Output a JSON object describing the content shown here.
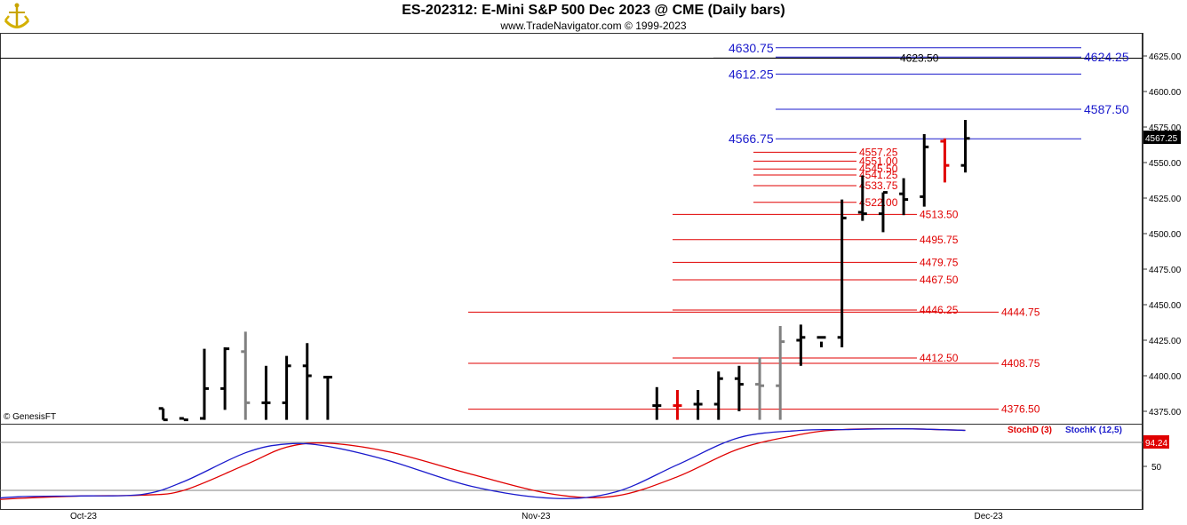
{
  "header": {
    "title": "ES-202312:  E-Mini S&P 500 Dec 2023 @ CME  (Daily bars)",
    "subtitle": "www.TradeNavigator.com © 1999-2023"
  },
  "watermark": "© GenesisFT",
  "colors": {
    "up": "#000000",
    "neutral": "#808080",
    "accent": "#e00000",
    "blue": "#1a1acc",
    "red": "#e00000"
  },
  "chart_data": [
    {
      "type": "ohlc",
      "price_axis": {
        "ylim": [
          4365,
          4640
        ],
        "ticks": [
          "4625.00",
          "4600.00",
          "4575.00",
          "4550.00",
          "4525.00",
          "4500.00",
          "4475.00",
          "4450.00",
          "4425.00",
          "4400.00",
          "4375.00"
        ]
      },
      "x_labels": [
        "Oct-23",
        "Nov-23",
        "Dec-23"
      ],
      "last_price": "4567.25",
      "bars": [
        {
          "date": "2023-09-28",
          "o": 4377,
          "h": 4377,
          "l": 4369,
          "c": 4369,
          "color": "up"
        },
        {
          "date": "2023-09-29",
          "o": 4370,
          "h": 4370,
          "l": 4369,
          "c": 4369,
          "color": "up"
        },
        {
          "date": "2023-10-02",
          "o": 4370,
          "h": 4419,
          "l": 4369,
          "c": 4391,
          "color": "up"
        },
        {
          "date": "2023-10-03",
          "o": 4391,
          "h": 4420,
          "l": 4376,
          "c": 4419,
          "color": "up"
        },
        {
          "date": "2023-10-04",
          "o": 4417,
          "h": 4431,
          "l": 4369,
          "c": 4381,
          "color": "neutral"
        },
        {
          "date": "2023-10-05",
          "o": 4381,
          "h": 4407,
          "l": 4369,
          "c": 4381,
          "color": "up"
        },
        {
          "date": "2023-10-06",
          "o": 4381,
          "h": 4414,
          "l": 4369,
          "c": 4407,
          "color": "up"
        },
        {
          "date": "2023-10-09",
          "o": 4407,
          "h": 4423,
          "l": 4369,
          "c": 4400,
          "color": "up"
        },
        {
          "date": "2023-10-10",
          "o": 4399,
          "h": 4400,
          "l": 4369,
          "c": 4399,
          "color": "up"
        },
        {
          "date": "2023-11-01",
          "o": 4379,
          "h": 4392,
          "l": 4369,
          "c": 4379,
          "color": "up"
        },
        {
          "date": "2023-11-02",
          "o": 4379,
          "h": 4390,
          "l": 4369,
          "c": 4379,
          "color": "accent"
        },
        {
          "date": "2023-11-03",
          "o": 4380,
          "h": 4390,
          "l": 4369,
          "c": 4380,
          "color": "up"
        },
        {
          "date": "2023-11-06",
          "o": 4380,
          "h": 4403,
          "l": 4369,
          "c": 4398,
          "color": "up"
        },
        {
          "date": "2023-11-07",
          "o": 4398,
          "h": 4407,
          "l": 4375,
          "c": 4394,
          "color": "up"
        },
        {
          "date": "2023-11-08",
          "o": 4394,
          "h": 4413,
          "l": 4369,
          "c": 4393,
          "color": "neutral"
        },
        {
          "date": "2023-11-09",
          "o": 4393,
          "h": 4435,
          "l": 4369,
          "c": 4424,
          "color": "neutral"
        },
        {
          "date": "2023-11-10",
          "o": 4425,
          "h": 4436,
          "l": 4407,
          "c": 4427,
          "color": "up"
        },
        {
          "date": "2023-11-13",
          "o": 4427,
          "h": 4424,
          "l": 4420,
          "c": 4427,
          "color": "up"
        },
        {
          "date": "2023-11-14",
          "o": 4427,
          "h": 4524,
          "l": 4420,
          "c": 4511,
          "color": "up"
        },
        {
          "date": "2023-11-15",
          "o": 4515,
          "h": 4541,
          "l": 4509,
          "c": 4514,
          "color": "up"
        },
        {
          "date": "2023-11-16",
          "o": 4514,
          "h": 4529,
          "l": 4501,
          "c": 4529,
          "color": "up"
        },
        {
          "date": "2023-11-17",
          "o": 4528,
          "h": 4539,
          "l": 4513,
          "c": 4524,
          "color": "up"
        },
        {
          "date": "2023-11-20",
          "o": 4526,
          "h": 4570,
          "l": 4519,
          "c": 4561,
          "color": "up"
        },
        {
          "date": "2023-11-21",
          "o": 4565,
          "h": 4567,
          "l": 4536,
          "c": 4548,
          "color": "accent"
        },
        {
          "date": "2023-11-22",
          "o": 4548,
          "h": 4580,
          "l": 4543,
          "c": 4567,
          "color": "up"
        }
      ],
      "horizontal_lines": [
        {
          "price": 4630.75,
          "label": "4630.75",
          "style": "blue-left"
        },
        {
          "price": 4624.25,
          "label": "4624.25",
          "style": "blue-right"
        },
        {
          "price": 4623.5,
          "label": "4623.50",
          "style": "black-mid"
        },
        {
          "price": 4612.25,
          "label": "4612.25",
          "style": "blue-left"
        },
        {
          "price": 4587.5,
          "label": "4587.50",
          "style": "blue-right"
        },
        {
          "price": 4566.75,
          "label": "4566.75",
          "style": "blue-left"
        },
        {
          "price": 4557.25,
          "label": "4557.25",
          "style": "red-a"
        },
        {
          "price": 4551.0,
          "label": "4551.00",
          "style": "red-a"
        },
        {
          "price": 4545.5,
          "label": "4545.50",
          "style": "red-a"
        },
        {
          "price": 4541.25,
          "label": "4541.25",
          "style": "red-a"
        },
        {
          "price": 4533.75,
          "label": "4533.75",
          "style": "red-a"
        },
        {
          "price": 4522.0,
          "label": "4522.00",
          "style": "red-a"
        },
        {
          "price": 4513.5,
          "label": "4513.50",
          "style": "red-b"
        },
        {
          "price": 4495.75,
          "label": "4495.75",
          "style": "red-b"
        },
        {
          "price": 4479.75,
          "label": "4479.75",
          "style": "red-b"
        },
        {
          "price": 4467.5,
          "label": "4467.50",
          "style": "red-b"
        },
        {
          "price": 4446.25,
          "label": "4446.25",
          "style": "red-b"
        },
        {
          "price": 4444.75,
          "label": "4444.75",
          "style": "red-c"
        },
        {
          "price": 4412.5,
          "label": "4412.50",
          "style": "red-b"
        },
        {
          "price": 4408.75,
          "label": "4408.75",
          "style": "red-c"
        },
        {
          "price": 4376.5,
          "label": "4376.50",
          "style": "red-c"
        }
      ]
    },
    {
      "type": "line",
      "indicator_axis": {
        "ylim": [
          0,
          100
        ],
        "ticks": [
          "50"
        ],
        "reference_lines": [
          80,
          20
        ]
      },
      "last_value": "94.24",
      "series": [
        {
          "name": "StochD (3)",
          "color": "#e00000",
          "x": [
            "2023-09-14",
            "2023-09-19",
            "2023-09-22",
            "2023-09-27",
            "2023-09-29",
            "2023-10-04",
            "2023-10-06",
            "2023-10-10",
            "2023-10-13",
            "2023-10-19",
            "2023-10-25",
            "2023-10-30",
            "2023-11-02",
            "2023-11-07",
            "2023-11-10",
            "2023-11-14",
            "2023-11-17",
            "2023-11-22"
          ],
          "values": [
            5,
            10,
            13,
            14,
            20,
            52,
            74,
            79,
            68,
            40,
            15,
            13,
            37,
            72,
            90,
            96,
            97,
            95
          ]
        },
        {
          "name": "StochK (12,5)",
          "color": "#1a1acc",
          "x": [
            "2023-09-14",
            "2023-09-19",
            "2023-09-22",
            "2023-09-27",
            "2023-09-29",
            "2023-10-04",
            "2023-10-06",
            "2023-10-10",
            "2023-10-13",
            "2023-10-19",
            "2023-10-25",
            "2023-10-30",
            "2023-11-02",
            "2023-11-07",
            "2023-11-10",
            "2023-11-14",
            "2023-11-17",
            "2023-11-22"
          ],
          "values": [
            6,
            12,
            13,
            15,
            31,
            67,
            78,
            75,
            57,
            25,
            10,
            18,
            52,
            86,
            95,
            96,
            97,
            95
          ]
        }
      ]
    }
  ]
}
